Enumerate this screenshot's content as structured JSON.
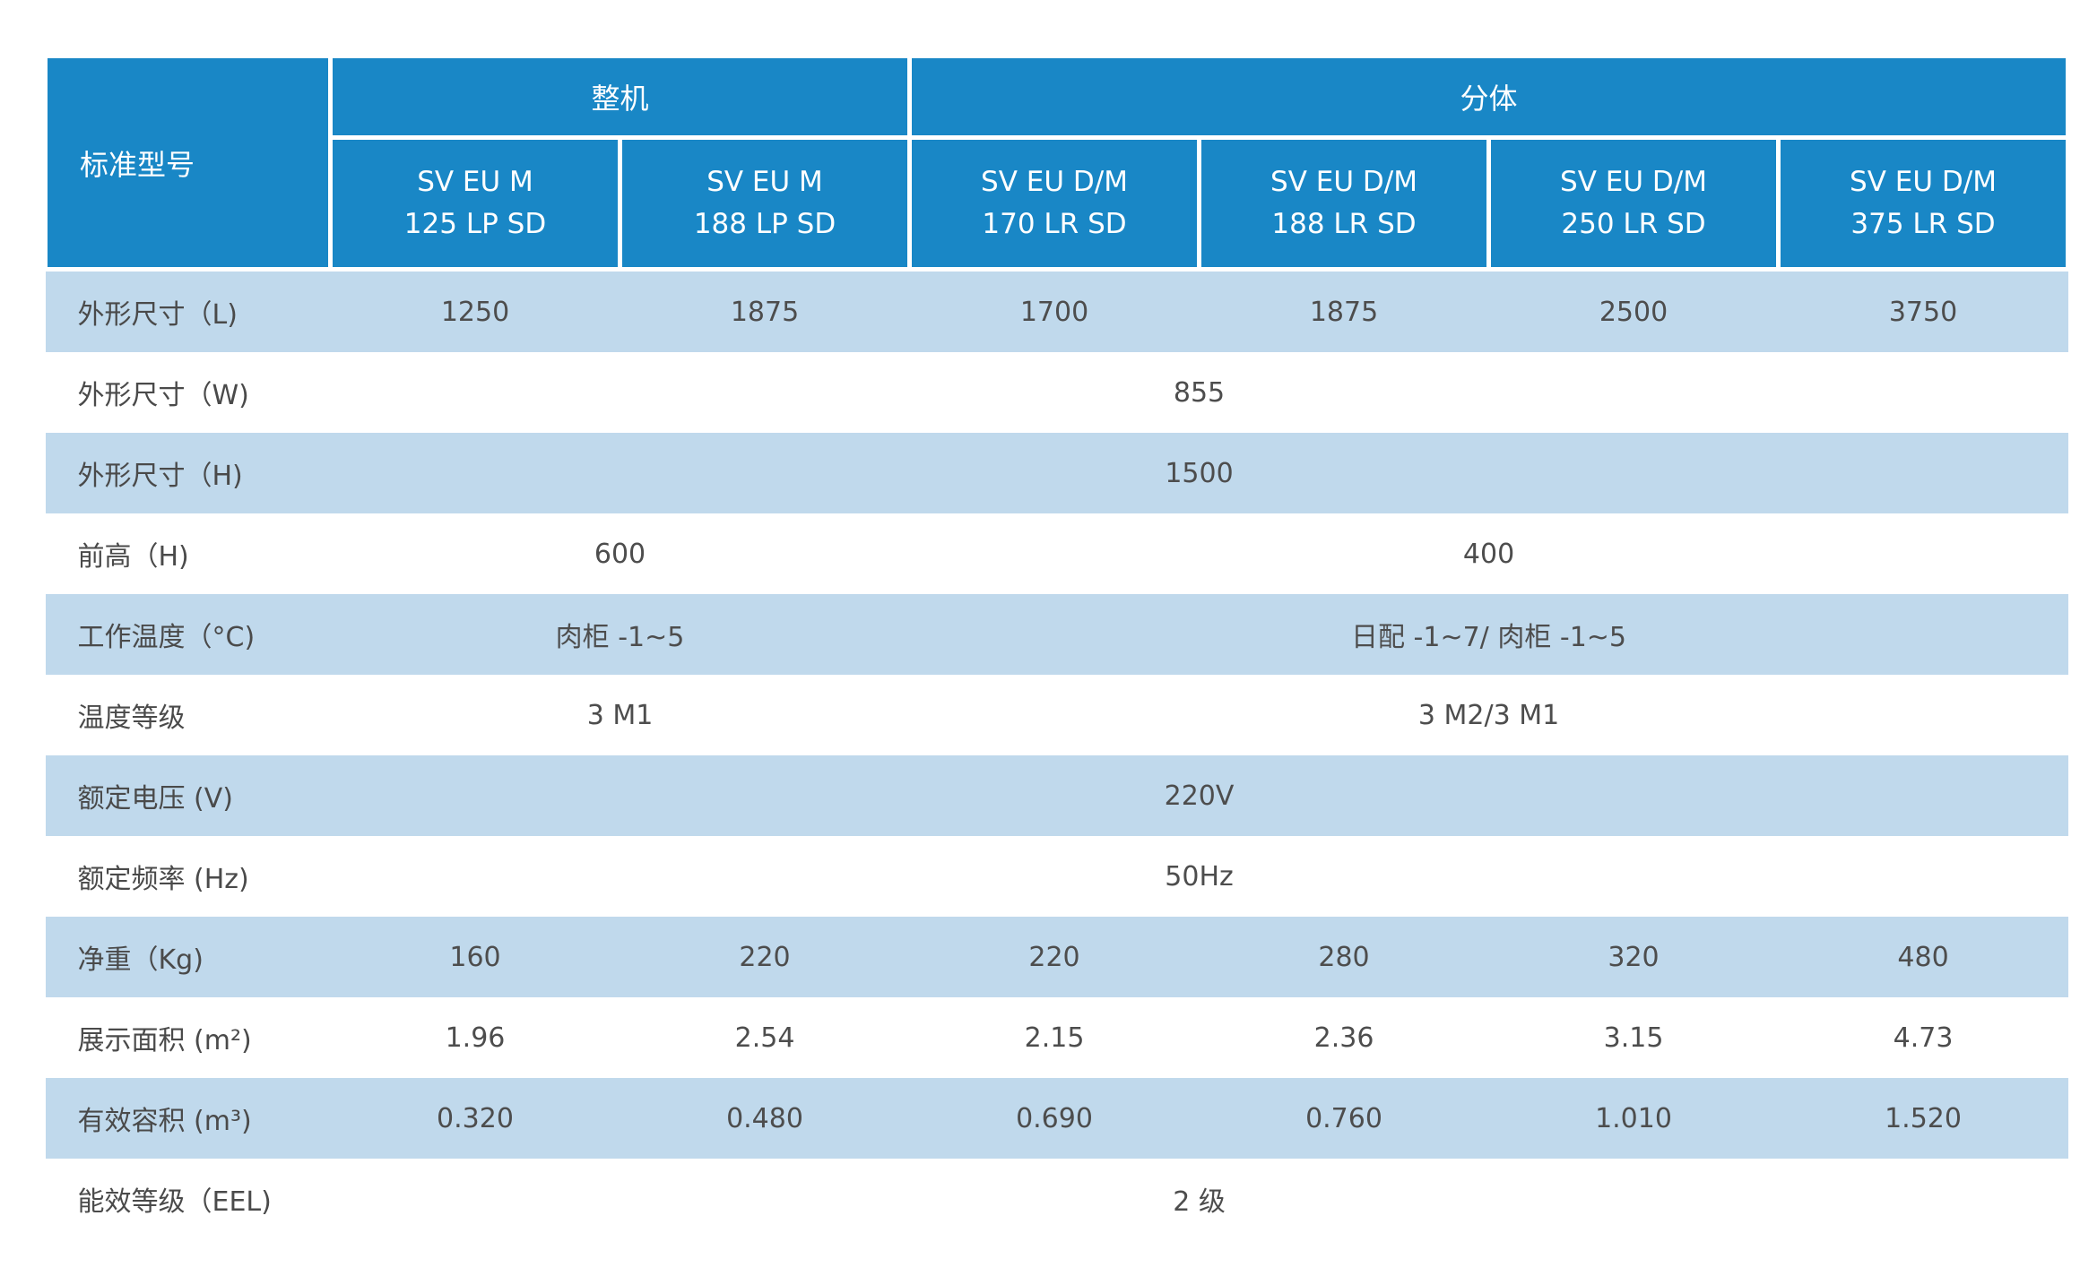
{
  "colors": {
    "header_blue": "#1987c6",
    "row_light_blue": "#c0d9ec",
    "body_text_gray": "#4d4d4d",
    "header_text": "#ffffff",
    "page_background": "#ffffff"
  },
  "table": {
    "corner_header": "标准型号",
    "groups": [
      {
        "label": "整机",
        "span": 2
      },
      {
        "label": "分体",
        "span": 4
      }
    ],
    "models": [
      {
        "line1": "SV EU M",
        "line2": "125 LP SD"
      },
      {
        "line1": "SV EU M",
        "line2": "188 LP SD"
      },
      {
        "line1": "SV EU D/M",
        "line2": "170 LR SD"
      },
      {
        "line1": "SV EU D/M",
        "line2": "188 LR SD"
      },
      {
        "line1": "SV EU D/M",
        "line2": "250 LR SD"
      },
      {
        "line1": "SV EU D/M",
        "line2": "375 LR SD"
      }
    ],
    "rows": [
      {
        "label": "外形尺寸（L)",
        "type": "per-column",
        "values": [
          "1250",
          "1875",
          "1700",
          "1875",
          "2500",
          "3750"
        ]
      },
      {
        "label": "外形尺寸（W)",
        "type": "span-all",
        "value": "855"
      },
      {
        "label": "外形尺寸（H)",
        "type": "span-all",
        "value": "1500"
      },
      {
        "label": "前高（H)",
        "type": "split",
        "whole_value": "600",
        "split_value": "400"
      },
      {
        "label": "工作温度（°C)",
        "type": "split",
        "whole_value": "肉柜 -1~5",
        "split_value": "日配 -1~7/ 肉柜 -1~5"
      },
      {
        "label": "温度等级",
        "type": "split",
        "whole_value": "3 M1",
        "split_value": "3 M2/3 M1"
      },
      {
        "label": "额定电压 (V)",
        "type": "span-all",
        "value": "220V"
      },
      {
        "label": "额定频率 (Hz)",
        "type": "span-all",
        "value": "50Hz"
      },
      {
        "label": "净重（Kg)",
        "type": "per-column",
        "values": [
          "160",
          "220",
          "220",
          "280",
          "320",
          "480"
        ]
      },
      {
        "label": "展示面积 (m²)",
        "type": "per-column",
        "values": [
          "1.96",
          "2.54",
          "2.15",
          "2.36",
          "3.15",
          "4.73"
        ]
      },
      {
        "label": "有效容积 (m³)",
        "type": "per-column",
        "values": [
          "0.320",
          "0.480",
          "0.690",
          "0.760",
          "1.010",
          "1.520"
        ]
      },
      {
        "label": "能效等级（EEL)",
        "type": "span-all",
        "value": "2 级"
      }
    ]
  }
}
